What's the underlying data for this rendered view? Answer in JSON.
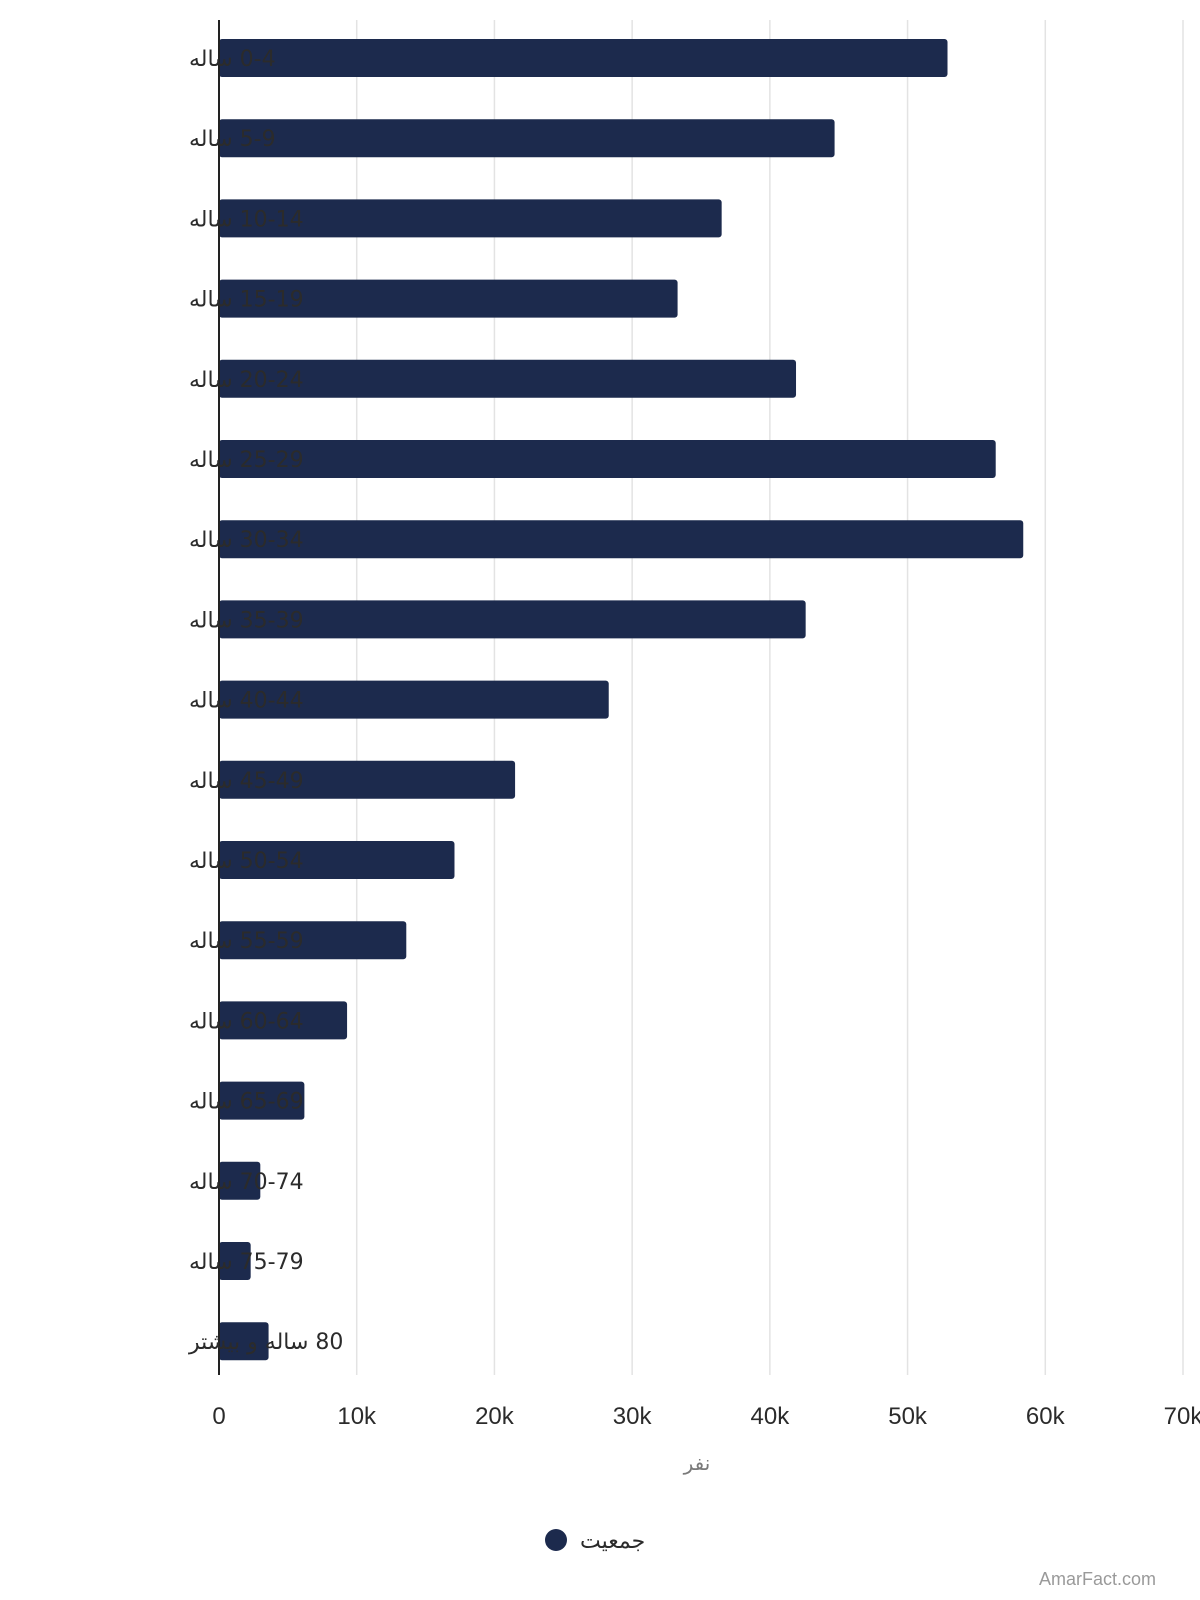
{
  "chart_data": {
    "type": "bar",
    "orientation": "horizontal",
    "categories": [
      "0-4 ساله",
      "5-9 ساله",
      "10-14 ساله",
      "15-19 ساله",
      "20-24 ساله",
      "25-29 ساله",
      "30-34 ساله",
      "35-39 ساله",
      "40-44 ساله",
      "45-49 ساله",
      "50-54 ساله",
      "55-59 ساله",
      "60-64 ساله",
      "65-69 ساله",
      "70-74 ساله",
      "75-79 ساله",
      "80 ساله و بیشتر"
    ],
    "series": [
      {
        "name": "جمعیت",
        "color": "#1c2a4d",
        "values": [
          52900,
          44700,
          36500,
          33300,
          41900,
          56400,
          58400,
          42600,
          28300,
          21500,
          17100,
          13600,
          9300,
          6200,
          3000,
          2300,
          3600
        ]
      }
    ],
    "xlabel": "نفر",
    "xlim": [
      0,
      70000
    ],
    "xticks": [
      {
        "value": 0,
        "label": "0"
      },
      {
        "value": 10000,
        "label": "10k"
      },
      {
        "value": 20000,
        "label": "20k"
      },
      {
        "value": 30000,
        "label": "30k"
      },
      {
        "value": 40000,
        "label": "40k"
      },
      {
        "value": 50000,
        "label": "50k"
      },
      {
        "value": 60000,
        "label": "60k"
      },
      {
        "value": 70000,
        "label": "70k"
      }
    ],
    "grid": "vertical",
    "legend_position": "bottom-center",
    "grid_color": "#e3e3e3",
    "axis_color": "#222222"
  },
  "watermark": "AmarFact.com"
}
